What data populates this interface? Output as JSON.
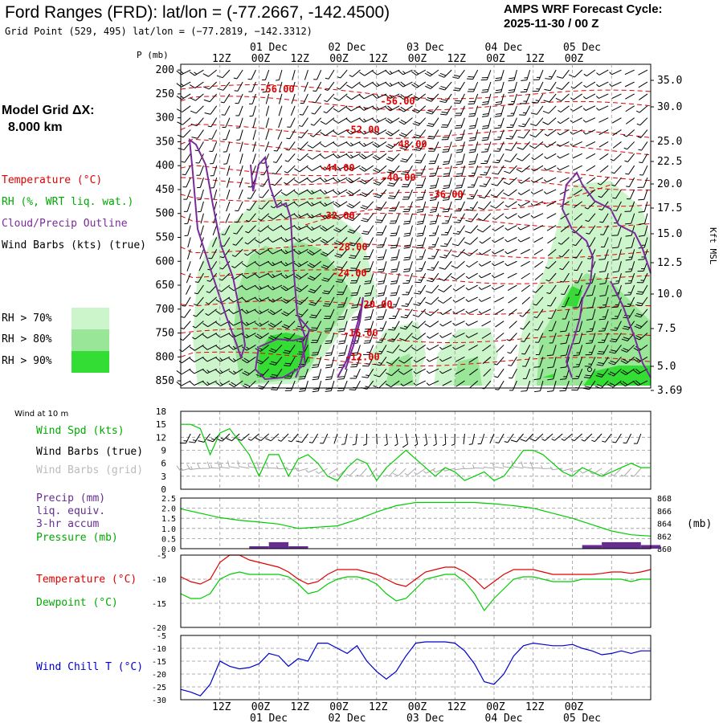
{
  "header": {
    "title": "Ford Ranges (FRD):  lat/lon = (-77.2667, -142.4500)",
    "subtitle": "Grid Point (529, 495) lat/lon = (−77.2819, −142.3312)",
    "cycle_line1": "AMPS WRF Forecast Cycle:",
    "cycle_line2": "2025-11-30 / 00  Z"
  },
  "model_grid": {
    "line1": "Model Grid ΔX:",
    "line2": "8.000 km"
  },
  "legend": {
    "temperature": "Temperature (°C)",
    "rh": "RH (%, WRT liq. wat.)",
    "cloud": "Cloud/Precip Outline",
    "wind": "Wind Barbs (kts) (true)",
    "rh_levels": [
      {
        "label": "RH > 70%",
        "color": "#ccf5cc"
      },
      {
        "label": "RH > 80%",
        "color": "#99e699"
      },
      {
        "label": "RH > 90%",
        "color": "#33dd33"
      }
    ]
  },
  "panel_labels": {
    "wind10m": "Wind at 10 m",
    "wind_spd": "Wind Spd (kts)",
    "wind_barbs_true": "Wind Barbs (true)",
    "wind_barbs_grid": "Wind Barbs (grid)",
    "precip1": "Precip (mm)",
    "precip2": "liq. equiv.",
    "precip3": "3-hr accum",
    "pressure": "Pressure (mb)",
    "pressure_unit": "(mb)",
    "temperature": "Temperature (°C)",
    "dewpoint": "Dewpoint (°C)",
    "wind_chill": "Wind Chill T (°C)"
  },
  "colors": {
    "temperature": "#e00000",
    "rh_green": "#00cc00",
    "cloud_outline": "#7a2b9a",
    "wind_chill": "#0000cc",
    "precip": "#662d91",
    "grid_barbs": "#aaaaaa",
    "grid_line": "#999999"
  },
  "chart_data": [
    {
      "type": "contour",
      "x_ticks_top": [
        "12Z",
        "00Z",
        "12Z",
        "00Z",
        "12Z",
        "00Z",
        "12Z",
        "00Z",
        "12Z",
        "00Z"
      ],
      "date_labels_top": [
        "01 Dec",
        "02 Dec",
        "03 Dec",
        "04 Dec",
        "05 Dec"
      ],
      "yaxis_title": "P (mb)",
      "pressure_ticks": [
        200,
        250,
        300,
        350,
        400,
        450,
        500,
        550,
        600,
        650,
        700,
        750,
        800,
        850
      ],
      "height_title": "Kft MSL",
      "height_ticks": [
        "35.0",
        "30.0",
        "25.0",
        "22.5",
        "20.0",
        "17.5",
        "15.0",
        "12.5",
        "10.0",
        "7.5",
        "5.0",
        "3.69"
      ],
      "temperature_contour_labels": [
        {
          "label": "-56.00",
          "pressure": 240
        },
        {
          "label": "-56.00",
          "pressure": 265
        },
        {
          "label": "-52.00",
          "pressure": 325
        },
        {
          "label": "-48.00",
          "pressure": 355
        },
        {
          "label": "-44.00",
          "pressure": 405
        },
        {
          "label": "-40.00",
          "pressure": 425
        },
        {
          "label": "-36.00",
          "pressure": 460
        },
        {
          "label": "-32.00",
          "pressure": 505
        },
        {
          "label": "-28.00",
          "pressure": 570
        },
        {
          "label": "-24.00",
          "pressure": 625
        },
        {
          "label": "-20.00",
          "pressure": 690
        },
        {
          "label": "-16.00",
          "pressure": 750
        },
        {
          "label": "-12.00",
          "pressure": 800
        }
      ]
    },
    {
      "type": "line",
      "name": "wind10m",
      "ylim": [
        0,
        18
      ],
      "y_ticks": [
        0,
        3,
        6,
        9,
        12,
        15,
        18
      ],
      "x": [
        0,
        3,
        6,
        9,
        12,
        15,
        18,
        21,
        24,
        27,
        30,
        33,
        36,
        39,
        42,
        45,
        48,
        51,
        54,
        57,
        60,
        63,
        66,
        69,
        72,
        75,
        78,
        81,
        84,
        87,
        90,
        93,
        96,
        99,
        102,
        105,
        108,
        111,
        114,
        117,
        120,
        123,
        126,
        129,
        132,
        135,
        138,
        141,
        144
      ],
      "series": [
        {
          "name": "Wind Spd (kts)",
          "values": [
            15,
            15,
            14,
            8,
            13,
            14,
            11,
            8,
            3,
            8,
            8,
            3,
            7,
            8,
            6,
            3,
            2,
            5,
            7,
            6,
            2,
            5,
            7,
            9,
            7,
            5,
            3,
            5,
            4,
            2,
            3,
            4,
            2,
            3,
            6,
            9,
            9,
            8,
            6,
            4,
            3,
            5,
            4,
            3,
            4,
            5,
            6,
            5,
            5
          ]
        }
      ]
    },
    {
      "type": "bar+line",
      "name": "precip_pressure",
      "precip_ylim": [
        0,
        2.5
      ],
      "precip_ticks": [
        "0.0",
        "0.5",
        "1.0",
        "1.5",
        "2.0",
        "2.5"
      ],
      "pressure_ylim": [
        860,
        868
      ],
      "pressure_ticks": [
        860,
        862,
        864,
        866,
        868
      ],
      "x": [
        0,
        6,
        12,
        18,
        24,
        30,
        36,
        42,
        48,
        54,
        60,
        66,
        72,
        78,
        84,
        90,
        96,
        102,
        108,
        114,
        120,
        126,
        132,
        138,
        144
      ],
      "series": [
        {
          "name": "Pressure (mb)",
          "values": [
            866.3,
            865.6,
            864.9,
            864.5,
            864.2,
            863.9,
            863.2,
            863.4,
            863.6,
            864.6,
            865.8,
            866.8,
            867.3,
            867.3,
            867.3,
            867.3,
            867.1,
            866.8,
            866.4,
            865.6,
            864.8,
            863.8,
            862.8,
            862.2,
            862.0
          ]
        },
        {
          "name": "Precip (mm)",
          "values": [
            0,
            0,
            0,
            0,
            0.12,
            0.32,
            0.12,
            0,
            0,
            0,
            0.02,
            0,
            0,
            0,
            0,
            0,
            0,
            0,
            0,
            0,
            0,
            0.18,
            0.32,
            0.32,
            0.18
          ]
        }
      ]
    },
    {
      "type": "line",
      "name": "temp_dewpoint",
      "ylim": [
        -20,
        -5
      ],
      "y_ticks": [
        -20,
        -15,
        -10,
        -5
      ],
      "x": [
        0,
        3,
        6,
        9,
        12,
        15,
        18,
        21,
        24,
        27,
        30,
        33,
        36,
        39,
        42,
        45,
        48,
        51,
        54,
        57,
        60,
        63,
        66,
        69,
        72,
        75,
        78,
        81,
        84,
        87,
        90,
        93,
        96,
        99,
        102,
        105,
        108,
        111,
        114,
        117,
        120,
        123,
        126,
        129,
        132,
        135,
        138,
        141,
        144
      ],
      "series": [
        {
          "name": "Temperature (°C)",
          "values": [
            -9.5,
            -10.5,
            -11,
            -10,
            -6.5,
            -5,
            -5,
            -6,
            -6.5,
            -7,
            -7.5,
            -8.5,
            -10,
            -11,
            -10.5,
            -9,
            -8,
            -8,
            -8,
            -8.5,
            -9,
            -10,
            -11,
            -11.5,
            -10,
            -8.5,
            -8,
            -7.5,
            -7.5,
            -8.5,
            -10,
            -12,
            -10.5,
            -9,
            -8,
            -8,
            -8,
            -8.5,
            -9,
            -9,
            -9,
            -9,
            -9,
            -8.8,
            -8.5,
            -8.5,
            -8.8,
            -8.5,
            -8
          ]
        },
        {
          "name": "Dewpoint (°C)",
          "values": [
            -13,
            -14,
            -14,
            -13,
            -10,
            -9,
            -8.5,
            -9,
            -9,
            -9,
            -9,
            -9.5,
            -11,
            -13,
            -12.5,
            -11,
            -10,
            -9.5,
            -9.5,
            -10,
            -11,
            -13,
            -14.5,
            -14,
            -12,
            -10,
            -9.5,
            -9,
            -9,
            -10.5,
            -13,
            -16.5,
            -14,
            -12,
            -10,
            -9.5,
            -9.5,
            -10,
            -10.5,
            -10.5,
            -10.5,
            -10,
            -10,
            -10,
            -10,
            -10,
            -10.5,
            -10,
            -10
          ]
        }
      ]
    },
    {
      "type": "line",
      "name": "wind_chill",
      "ylim": [
        -30,
        -5
      ],
      "y_ticks": [
        -30,
        -25,
        -20,
        -15,
        -10,
        -5
      ],
      "x": [
        0,
        3,
        6,
        9,
        12,
        15,
        18,
        21,
        24,
        27,
        30,
        33,
        36,
        39,
        42,
        45,
        48,
        51,
        54,
        57,
        60,
        63,
        66,
        69,
        72,
        75,
        78,
        81,
        84,
        87,
        90,
        93,
        96,
        99,
        102,
        105,
        108,
        111,
        114,
        117,
        120,
        123,
        126,
        129,
        132,
        135,
        138,
        141,
        144
      ],
      "series": [
        {
          "name": "Wind Chill T (°C)",
          "values": [
            -26,
            -27,
            -28.5,
            -24,
            -15,
            -17,
            -18,
            -17.5,
            -16,
            -12,
            -13,
            -17,
            -14,
            -15,
            -8,
            -8,
            -10,
            -12,
            -9,
            -15,
            -19,
            -22,
            -19,
            -13,
            -8,
            -7.5,
            -7.5,
            -7.5,
            -8,
            -11,
            -16,
            -23,
            -24,
            -20,
            -13,
            -9,
            -8,
            -8.5,
            -9,
            -9,
            -8.5,
            -10,
            -11,
            -12.5,
            -12,
            -11,
            -12,
            -11,
            -11
          ]
        }
      ],
      "x_ticks_bottom": [
        "12Z",
        "00Z",
        "12Z",
        "00Z",
        "12Z",
        "00Z",
        "12Z",
        "00Z",
        "12Z",
        "00Z"
      ],
      "date_labels_bottom": [
        "01 Dec",
        "02 Dec",
        "03 Dec",
        "04 Dec",
        "05 Dec"
      ]
    }
  ]
}
